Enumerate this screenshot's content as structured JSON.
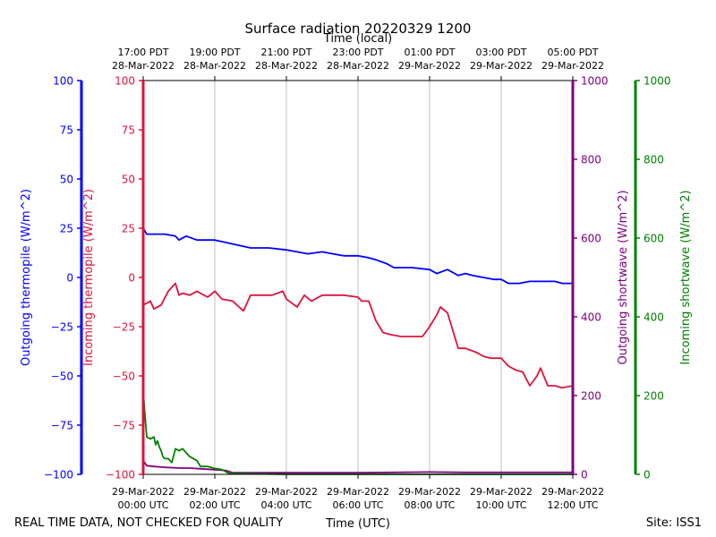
{
  "chart_data": {
    "type": "line",
    "title": "Surface radiation 20220329 1200",
    "top_xlabel": "Time (local)",
    "xlabel": "Time (UTC)",
    "x_unit": "hours since 29-Mar-2022 00:00 UTC",
    "xlim": [
      0,
      12
    ],
    "bottom_ticks": [
      {
        "x": 0,
        "date": "29-Mar-2022",
        "time": "00:00 UTC"
      },
      {
        "x": 2,
        "date": "29-Mar-2022",
        "time": "02:00 UTC"
      },
      {
        "x": 4,
        "date": "29-Mar-2022",
        "time": "04:00 UTC"
      },
      {
        "x": 6,
        "date": "29-Mar-2022",
        "time": "06:00 UTC"
      },
      {
        "x": 8,
        "date": "29-Mar-2022",
        "time": "08:00 UTC"
      },
      {
        "x": 10,
        "date": "29-Mar-2022",
        "time": "10:00 UTC"
      },
      {
        "x": 12,
        "date": "29-Mar-2022",
        "time": "12:00 UTC"
      }
    ],
    "top_ticks": [
      {
        "x": 0,
        "time": "17:00 PDT",
        "date": "28-Mar-2022"
      },
      {
        "x": 2,
        "time": "19:00 PDT",
        "date": "28-Mar-2022"
      },
      {
        "x": 4,
        "time": "21:00 PDT",
        "date": "28-Mar-2022"
      },
      {
        "x": 6,
        "time": "23:00 PDT",
        "date": "28-Mar-2022"
      },
      {
        "x": 8,
        "time": "01:00 PDT",
        "date": "29-Mar-2022"
      },
      {
        "x": 10,
        "time": "03:00 PDT",
        "date": "29-Mar-2022"
      },
      {
        "x": 12,
        "time": "05:00 PDT",
        "date": "29-Mar-2022"
      }
    ],
    "grid": true,
    "axes": [
      {
        "id": "outgoing_thermopile",
        "label": "Outgoing thermopile (W/m^2)",
        "color": "#0000ff",
        "side": "left-outer",
        "ylim": [
          -100,
          100
        ],
        "ticks": [
          -100,
          -75,
          -50,
          -25,
          0,
          25,
          50,
          75,
          100
        ]
      },
      {
        "id": "incoming_thermopile",
        "label": "Incoming thermopile (W/m^2)",
        "color": "#dc143c",
        "side": "left-inner",
        "ylim": [
          -100,
          100
        ],
        "ticks": [
          -100,
          -75,
          -50,
          -25,
          0,
          25,
          50,
          75,
          100
        ]
      },
      {
        "id": "outgoing_shortwave",
        "label": "Outgoing shortwave (W/m^2)",
        "color": "#800080",
        "side": "right-inner",
        "ylim": [
          0,
          1000
        ],
        "ticks": [
          0,
          200,
          400,
          600,
          800,
          1000
        ]
      },
      {
        "id": "incoming_shortwave",
        "label": "Incoming shortwave (W/m^2)",
        "color": "#008000",
        "side": "right-outer",
        "ylim": [
          0,
          1000
        ],
        "ticks": [
          0,
          200,
          400,
          600,
          800,
          1000
        ]
      }
    ],
    "series": [
      {
        "name": "Outgoing thermopile",
        "axis": "outgoing_thermopile",
        "color": "#0000ff",
        "x": [
          0,
          0.1,
          0.3,
          0.6,
          0.9,
          1.0,
          1.2,
          1.5,
          1.7,
          2.0,
          2.5,
          3.0,
          3.5,
          4.0,
          4.3,
          4.6,
          5.0,
          5.3,
          5.6,
          6.0,
          6.3,
          6.5,
          6.8,
          7.0,
          7.5,
          8.0,
          8.2,
          8.5,
          8.8,
          9.0,
          9.2,
          9.5,
          9.8,
          10.0,
          10.2,
          10.5,
          10.8,
          11.0,
          11.2,
          11.5,
          11.7,
          12.0
        ],
        "y": [
          25,
          22,
          22,
          22,
          21,
          19,
          21,
          19,
          19,
          19,
          17,
          15,
          15,
          14,
          13,
          12,
          13,
          12,
          11,
          11,
          10,
          9,
          7,
          5,
          5,
          4,
          2,
          4,
          1,
          2,
          1,
          0,
          -1,
          -1,
          -3,
          -3,
          -2,
          -2,
          -2,
          -2,
          -3,
          -3
        ]
      },
      {
        "name": "Incoming thermopile",
        "axis": "incoming_thermopile",
        "color": "#dc143c",
        "x": [
          0,
          0.2,
          0.3,
          0.5,
          0.7,
          0.9,
          1.0,
          1.1,
          1.3,
          1.5,
          1.8,
          2.0,
          2.2,
          2.5,
          2.8,
          3.0,
          3.2,
          3.6,
          3.9,
          4.0,
          4.3,
          4.5,
          4.7,
          5.0,
          5.3,
          5.6,
          6.0,
          6.1,
          6.3,
          6.5,
          6.7,
          6.9,
          7.2,
          7.5,
          7.8,
          8.0,
          8.2,
          8.3,
          8.5,
          8.8,
          9.0,
          9.3,
          9.5,
          9.7,
          10.0,
          10.2,
          10.4,
          10.6,
          10.8,
          11.0,
          11.1,
          11.3,
          11.5,
          11.7,
          12.0
        ],
        "y": [
          -14,
          -12,
          -16,
          -14,
          -7,
          -3,
          -9,
          -8,
          -9,
          -7,
          -10,
          -7,
          -11,
          -12,
          -17,
          -9,
          -9,
          -9,
          -7,
          -11,
          -15,
          -9,
          -12,
          -9,
          -9,
          -9,
          -10,
          -12,
          -12,
          -22,
          -28,
          -29,
          -30,
          -30,
          -30,
          -25,
          -19,
          -15,
          -18,
          -36,
          -36,
          -38,
          -40,
          -41,
          -41,
          -45,
          -47,
          -48,
          -55,
          -50,
          -46,
          -55,
          -55,
          -56,
          -55
        ]
      },
      {
        "name": "Outgoing shortwave",
        "axis": "outgoing_shortwave",
        "color": "#800080",
        "x": [
          0,
          0.1,
          0.3,
          0.6,
          1.0,
          1.3,
          1.8,
          2.3,
          2.5,
          4.0,
          6.0,
          7.0,
          8.0,
          9.0,
          10.0,
          11.0,
          12.0
        ],
        "y": [
          35,
          22,
          20,
          18,
          16,
          16,
          13,
          10,
          4,
          4,
          4,
          5,
          6,
          5,
          5,
          5,
          5
        ]
      },
      {
        "name": "Incoming shortwave",
        "axis": "incoming_shortwave",
        "color": "#008000",
        "x": [
          0,
          0.05,
          0.1,
          0.2,
          0.3,
          0.35,
          0.4,
          0.45,
          0.5,
          0.55,
          0.6,
          0.7,
          0.8,
          0.9,
          1.0,
          1.1,
          1.3,
          1.5,
          1.6,
          1.8,
          2.0,
          2.2,
          2.4,
          2.6,
          4.0,
          6.0,
          8.0,
          10.0,
          12.0
        ],
        "y": [
          210,
          150,
          95,
          90,
          95,
          75,
          85,
          70,
          60,
          45,
          40,
          40,
          30,
          65,
          60,
          65,
          45,
          35,
          20,
          20,
          15,
          12,
          2,
          2,
          0,
          0,
          0,
          0,
          0
        ]
      }
    ],
    "footer_left": "REAL TIME DATA, NOT CHECKED FOR QUALITY",
    "footer_right": "Site: ISS1"
  }
}
